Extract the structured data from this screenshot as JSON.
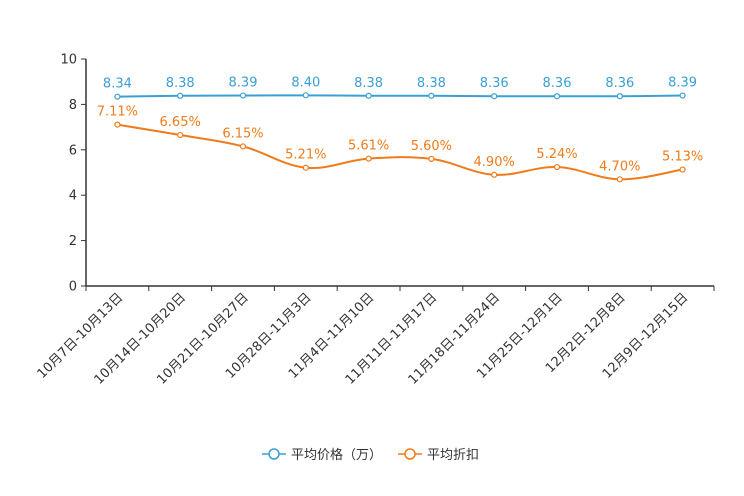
{
  "chart_data": {
    "type": "line",
    "categories": [
      "10月7日-10月13日",
      "10月14日-10月20日",
      "10月21日-10月27日",
      "10月28日-11月3日",
      "11月4日-11月10日",
      "11月11日-11月17日",
      "11月18日-11月24日",
      "11月25日-12月1日",
      "12月2日-12月8日",
      "12月9日-12月15日"
    ],
    "series": [
      {
        "name": "平均价格（万）",
        "color": "#3a9fd4",
        "values": [
          8.34,
          8.38,
          8.39,
          8.4,
          8.38,
          8.38,
          8.36,
          8.36,
          8.36,
          8.39
        ],
        "labels": [
          "8.34",
          "8.38",
          "8.39",
          "8.40",
          "8.38",
          "8.38",
          "8.36",
          "8.36",
          "8.36",
          "8.39"
        ]
      },
      {
        "name": "平均折扣",
        "color": "#f07b1a",
        "values": [
          7.11,
          6.65,
          6.15,
          5.21,
          5.61,
          5.6,
          4.9,
          5.24,
          4.7,
          5.13
        ],
        "labels": [
          "7.11%",
          "6.65%",
          "6.15%",
          "5.21%",
          "5.61%",
          "5.60%",
          "4.90%",
          "5.24%",
          "4.70%",
          "5.13%"
        ]
      }
    ],
    "ylim": [
      0,
      10
    ],
    "yticks": [
      "0",
      "2",
      "4",
      "6",
      "8",
      "10"
    ],
    "title": "",
    "xlabel": "",
    "ylabel": "",
    "grid": false,
    "legend_position": "bottom-center"
  }
}
